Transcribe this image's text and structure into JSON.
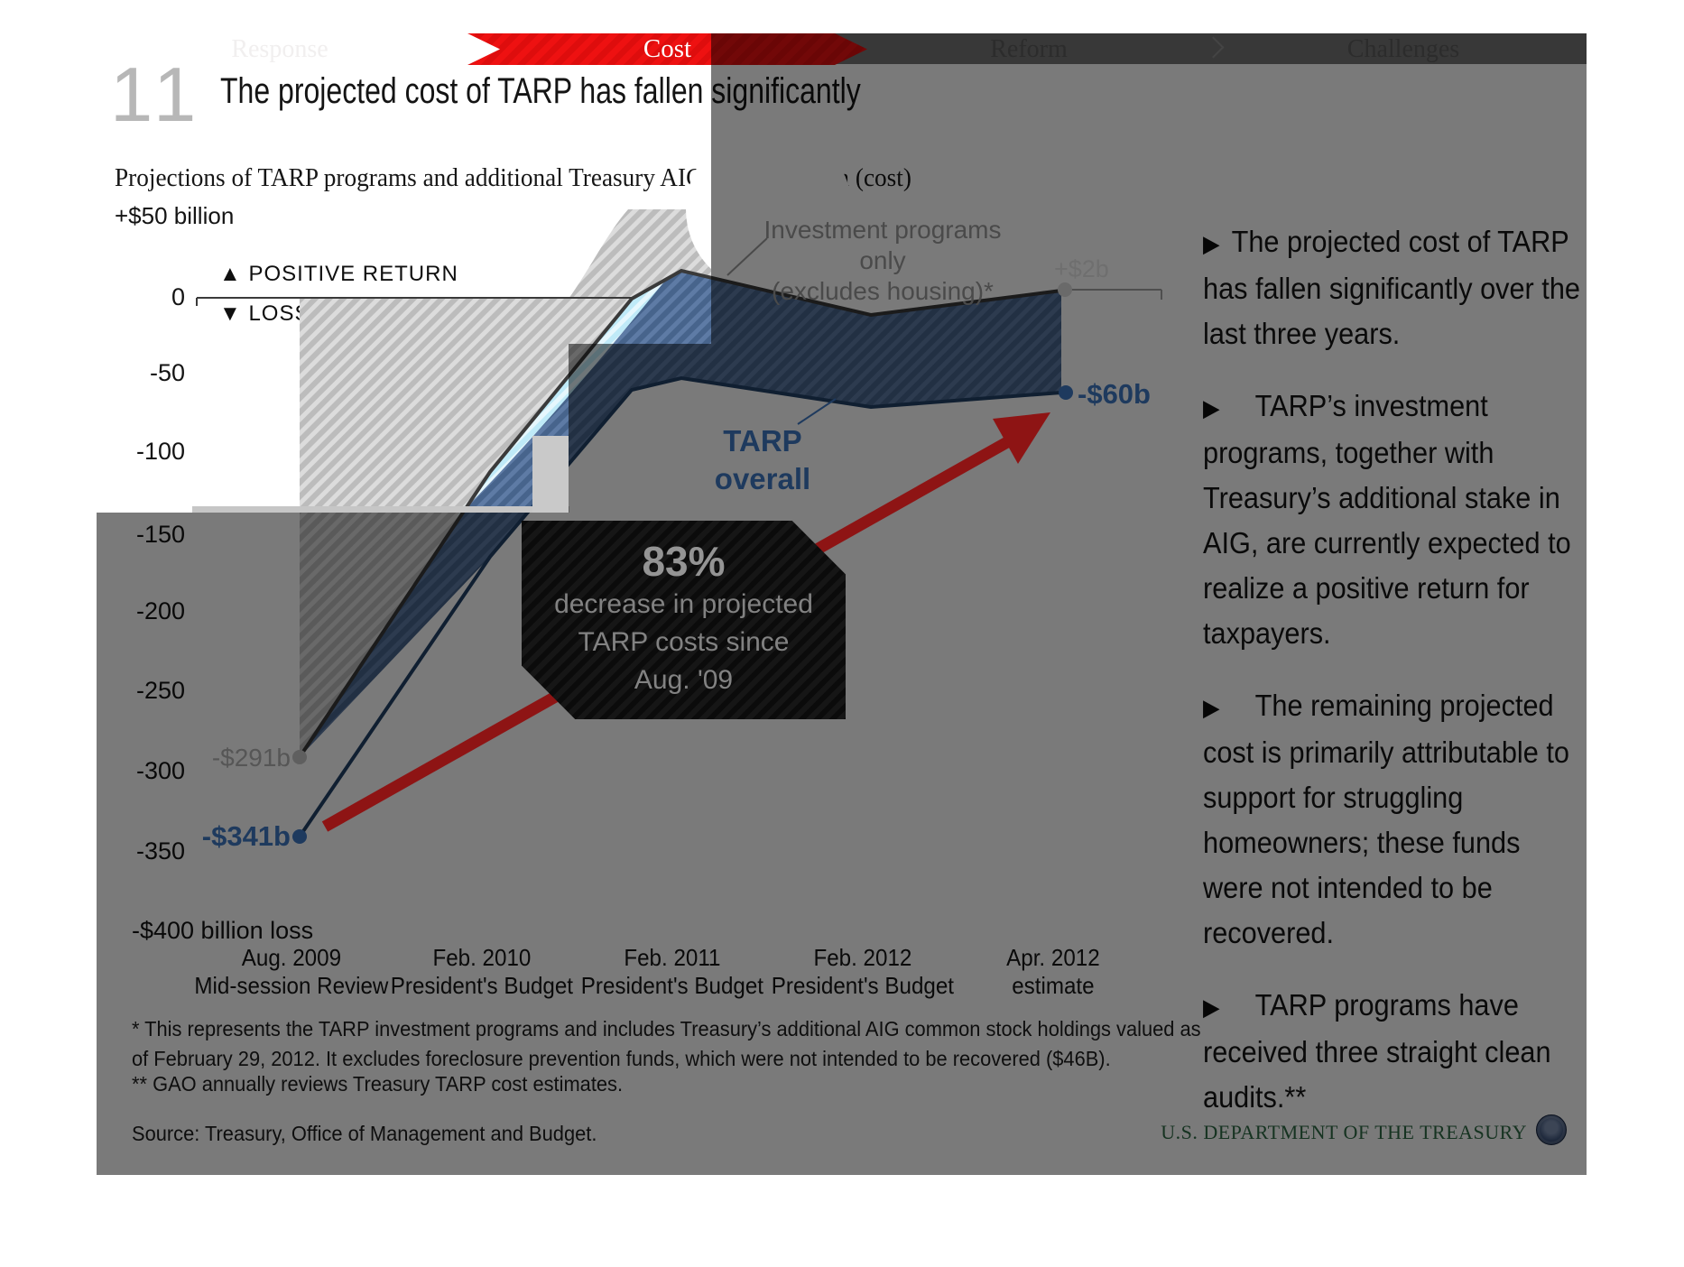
{
  "nav": {
    "tabs": [
      {
        "label": "Response",
        "active": false
      },
      {
        "label": "Cost",
        "active": true
      },
      {
        "label": "Reform",
        "active": false
      },
      {
        "label": "Challenges",
        "active": false
      }
    ]
  },
  "header": {
    "slide_number": "11",
    "title": "The projected cost of TARP has fallen significantly"
  },
  "chart": {
    "subtitle": "Projections of TARP programs and additional Treasury AIG holdings, gain (cost)",
    "top_axis_label": "+$50 billion",
    "legend": {
      "positive_icon": "▲",
      "positive": "POSITIVE RETURN",
      "loss_icon": "▼",
      "loss": "LOSS"
    },
    "y_ticks": [
      "0",
      "-50",
      "-100",
      "-150",
      "-200",
      "-250",
      "-300",
      "-350"
    ],
    "bottom_axis_label": "-$400 billion loss",
    "x_labels": [
      {
        "line1": "Aug. 2009",
        "line2": "Mid-session Review"
      },
      {
        "line1": "Feb. 2010",
        "line2": "President's Budget"
      },
      {
        "line1": "Feb. 2011",
        "line2": "President's Budget"
      },
      {
        "line1": "Feb. 2012",
        "line2": "President's Budget"
      },
      {
        "line1": "Apr. 2012",
        "line2": "estimate"
      }
    ],
    "annotations": {
      "investment_line1": "Investment programs only",
      "investment_line2": "(excludes housing)*",
      "plus_2b": "+$2b",
      "minus_60b": "-$60b",
      "minus_291b": "-$291b",
      "minus_341b": "-$341b",
      "tarp_line1": "TARP",
      "tarp_line2": "overall"
    },
    "callout": {
      "headline": "83%",
      "line1": "decrease in projected",
      "line2": "TARP costs since",
      "line3": "Aug. '09"
    }
  },
  "footnotes": {
    "star": "* This represents the TARP investment programs and includes Treasury’s additional AIG common stock holdings valued as of February 29, 2012. It excludes foreclosure prevention funds, which were not intended to be recovered ($46B).",
    "double_star": "** GAO annually reviews Treasury TARP cost estimates.",
    "source": "Source: Treasury, Office of Management and Budget."
  },
  "sidebar": {
    "bullets": [
      {
        "text": "The projected cost of TARP has fallen significantly over the last three years."
      },
      {
        "text": "TARP’s investment programs, together with Treasury’s additional stake in AIG,  are currently expected to realize a positive return for taxpayers."
      },
      {
        "text": "The remaining projected cost is primarily attributable to support for struggling homeowners; these funds were not intended to be recovered."
      },
      {
        "text": "TARP programs have received three straight clean audits.**"
      }
    ]
  },
  "footer": {
    "agency": "U.S. DEPARTMENT OF THE TREASURY"
  },
  "theme": {
    "accent_red": "#ee1111",
    "navy": "#1e3a5e",
    "arrow_dark_red": "#8e1414",
    "hatch_gray": "#bcbcbc",
    "hatch_cyan": "#bfeaf8",
    "hatch_navy": "#47648c"
  },
  "chart_data": {
    "type": "line",
    "title": "The projected cost of TARP has fallen significantly",
    "subtitle": "Projections of TARP programs and additional Treasury AIG holdings, gain (cost)",
    "y_unit": "$ billions",
    "ylim": [
      -400,
      50
    ],
    "y_ticks": [
      0,
      -50,
      -100,
      -150,
      -200,
      -250,
      -300,
      -350
    ],
    "grid": false,
    "categories": [
      "Aug. 2009 Mid-session Review",
      "Feb. 2010 President's Budget",
      "Feb. 2011 President's Budget",
      "Feb. 2012 President's Budget",
      "Apr. 2012 estimate"
    ],
    "series": [
      {
        "name": "TARP overall",
        "color": "#1e3a5e",
        "values": [
          -341,
          -164,
          -50,
          -70,
          -60
        ],
        "endpoint_labels": {
          "first": "-$341b",
          "last": "-$60b"
        }
      },
      {
        "name": "Investment programs only (excludes housing)*",
        "color": "#3a3a3a",
        "values": [
          -291,
          -115,
          15,
          -13,
          2
        ],
        "endpoint_labels": {
          "first": "-$291b",
          "last": "+$2b"
        }
      }
    ],
    "annotation": "83% decrease in projected TARP costs since Aug. '09"
  }
}
